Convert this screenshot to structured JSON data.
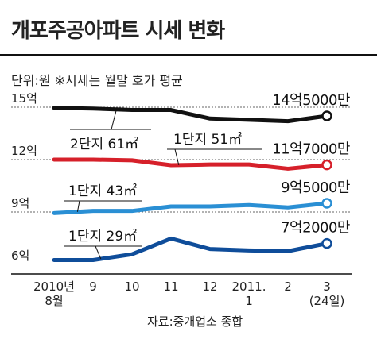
{
  "title": "개포주공아파트 시세 변화",
  "subtitle": "단위:원   ※시세는 월말 호가 평균",
  "source": "자료:중개업소 종합",
  "chart_data": {
    "type": "line",
    "categories": [
      "2010년 8월",
      "9",
      "10",
      "11",
      "12",
      "2011. 1",
      "2",
      "3 (24일)"
    ],
    "category_lines": [
      [
        "2010년",
        "8월"
      ],
      [
        "9"
      ],
      [
        "10"
      ],
      [
        "11"
      ],
      [
        "12"
      ],
      [
        "2011.",
        "1"
      ],
      [
        "2"
      ],
      [
        "3",
        "(24일)"
      ]
    ],
    "y_ticks": [
      {
        "value": 15,
        "label": "15억"
      },
      {
        "value": 12,
        "label": "12억"
      },
      {
        "value": 9,
        "label": "9억"
      },
      {
        "value": 6,
        "label": "6억"
      }
    ],
    "ylim": [
      5.2,
      15.8
    ],
    "series": [
      {
        "name": "2단지 61㎡",
        "color": "#111111",
        "end_label": "14억5000만",
        "values": [
          14.96,
          14.92,
          14.84,
          14.84,
          14.35,
          14.28,
          14.2,
          14.5
        ]
      },
      {
        "name": "1단지 51㎡",
        "color": "#d6202a",
        "end_label": "11억7000만",
        "values": [
          12.0,
          12.0,
          11.96,
          11.68,
          11.72,
          11.72,
          11.48,
          11.7
        ]
      },
      {
        "name": "1단지 43㎡",
        "color": "#2a8fd4",
        "end_label": "9억5000만",
        "values": [
          8.94,
          9.06,
          9.06,
          9.32,
          9.32,
          9.4,
          9.26,
          9.5
        ]
      },
      {
        "name": "1단지 29㎡",
        "color": "#0f4d9a",
        "end_label": "7억2000만",
        "values": [
          6.25,
          6.25,
          6.58,
          7.48,
          6.88,
          6.8,
          6.76,
          7.2
        ]
      }
    ]
  }
}
